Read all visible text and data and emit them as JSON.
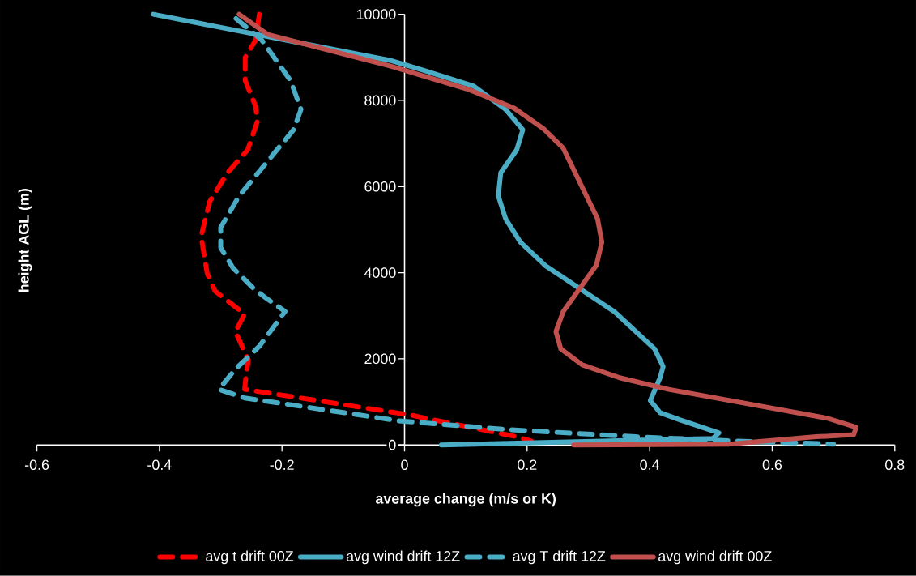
{
  "chart_data": {
    "type": "line",
    "xlabel": "average change (m/s or K)",
    "ylabel": "height AGL (m)",
    "xlim": [
      -0.6,
      0.8
    ],
    "ylim": [
      0,
      10000
    ],
    "xticks": [
      -0.6,
      -0.4,
      -0.2,
      0,
      0.2,
      0.4,
      0.6,
      0.8
    ],
    "yticks": [
      0,
      2000,
      4000,
      6000,
      8000,
      10000
    ],
    "legend": "bottom",
    "series": [
      {
        "name": "avg t drift 00Z",
        "color": "#ff0000",
        "line_style": "dashed",
        "x": [
          -0.237,
          -0.243,
          -0.26,
          -0.26,
          -0.243,
          -0.24,
          -0.256,
          -0.289,
          -0.318,
          -0.332,
          -0.322,
          -0.309,
          -0.261,
          -0.276,
          -0.255,
          -0.259,
          -0.261,
          0.012,
          0.024,
          0.183,
          0.207
        ],
        "values": [
          10000,
          9400,
          9000,
          8460,
          7860,
          7520,
          6850,
          6320,
          5650,
          4840,
          3980,
          3570,
          3040,
          2630,
          1970,
          1560,
          1290,
          690,
          650,
          190,
          90
        ]
      },
      {
        "name": "avg wind drift 12Z",
        "color": "#4bacc6",
        "line_style": "solid",
        "x": [
          -0.41,
          -0.024,
          0.026,
          0.113,
          0.165,
          0.193,
          0.183,
          0.157,
          0.153,
          0.165,
          0.189,
          0.231,
          0.342,
          0.408,
          0.422,
          0.417,
          0.401,
          0.417,
          0.45,
          0.513,
          0.503,
          0.06
        ],
        "values": [
          10000,
          8930,
          8720,
          8330,
          7790,
          7320,
          6850,
          6320,
          5780,
          5250,
          4710,
          4150,
          3100,
          2230,
          1820,
          1560,
          1030,
          750,
          580,
          280,
          150,
          0
        ]
      },
      {
        "name": "avg T drift 12Z",
        "color": "#4bacc6",
        "line_style": "dashed",
        "x": [
          -0.275,
          -0.233,
          -0.186,
          -0.169,
          -0.181,
          -0.228,
          -0.27,
          -0.3,
          -0.3,
          -0.28,
          -0.247,
          -0.228,
          -0.195,
          -0.237,
          -0.256,
          -0.276,
          -0.303,
          -0.261,
          -0.009,
          0.165,
          0.377,
          0.54,
          0.7
        ],
        "values": [
          9900,
          9400,
          8460,
          7790,
          7320,
          6510,
          5780,
          5050,
          4580,
          4110,
          3640,
          3430,
          3100,
          2290,
          2030,
          1760,
          1290,
          1090,
          560,
          360,
          190,
          90,
          20
        ]
      },
      {
        "name": "avg wind drift 00Z",
        "color": "#c0504d",
        "line_style": "solid",
        "x": [
          -0.27,
          -0.223,
          -0.024,
          0.103,
          0.179,
          0.226,
          0.259,
          0.315,
          0.322,
          0.313,
          0.259,
          0.247,
          0.255,
          0.29,
          0.351,
          0.431,
          0.69,
          0.737,
          0.733,
          0.672,
          0.53,
          0.276
        ],
        "values": [
          10000,
          9530,
          8800,
          8260,
          7820,
          7350,
          6890,
          5250,
          4710,
          4170,
          3100,
          2630,
          2230,
          1860,
          1560,
          1290,
          620,
          410,
          240,
          190,
          20,
          0
        ]
      }
    ]
  }
}
